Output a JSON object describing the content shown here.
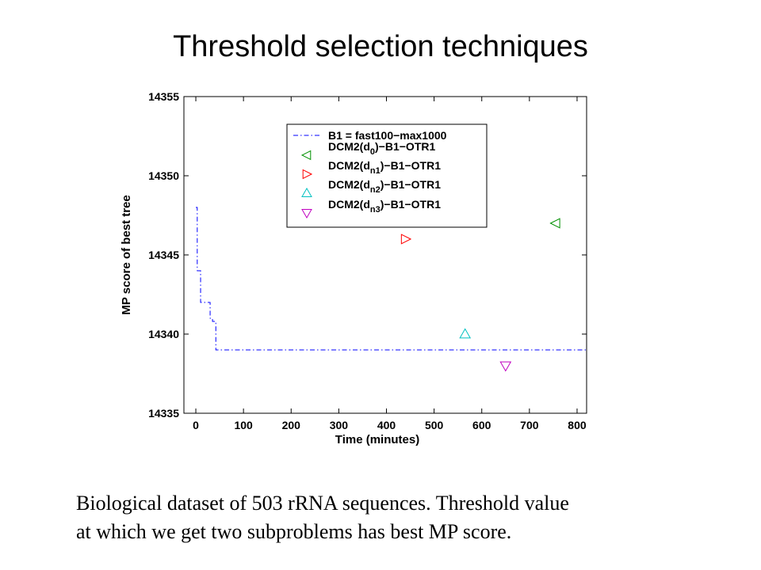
{
  "slide": {
    "title": "Threshold selection techniques",
    "caption_line1": "Biological dataset of 503 rRNA sequences. Threshold value",
    "caption_line2": "at which we get two subproblems has best MP score."
  },
  "chart_data": {
    "type": "line",
    "xlabel": "Time (minutes)",
    "ylabel": "MP score of best tree",
    "xlim": [
      -25,
      820
    ],
    "ylim": [
      14335,
      14355
    ],
    "xticks": [
      0,
      100,
      200,
      300,
      400,
      500,
      600,
      700,
      800
    ],
    "yticks": [
      14335,
      14340,
      14345,
      14350,
      14355
    ],
    "grid": false,
    "legend_position": "top-right",
    "series": [
      {
        "name": "B1 = fast100−max1000",
        "style": "dash-dot",
        "color": "#0000ff",
        "x": [
          0,
          3,
          3,
          10,
          10,
          30,
          30,
          35,
          35,
          42,
          42,
          820
        ],
        "y": [
          14348,
          14348,
          14344,
          14344,
          14342,
          14342,
          14341,
          14341,
          14340.8,
          14340.8,
          14339,
          14339
        ]
      }
    ],
    "markers": [
      {
        "name": "DCM2(d0)−B1−OTR1",
        "label_base": "DCM2(d",
        "label_sub": "0",
        "label_tail": ")−B1−OTR1",
        "shape": "triangle-left",
        "color": "#009000",
        "x": 755,
        "y": 14347
      },
      {
        "name": "DCM2(dn1)−B1−OTR1",
        "label_base": "DCM2(d",
        "label_sub": "n1",
        "label_tail": ")−B1−OTR1",
        "shape": "triangle-right",
        "color": "#ff0000",
        "x": 440,
        "y": 14346
      },
      {
        "name": "DCM2(dn2)−B1−OTR1",
        "label_base": "DCM2(d",
        "label_sub": "n2",
        "label_tail": ")−B1−OTR1",
        "shape": "triangle-up",
        "color": "#00c0c0",
        "x": 565,
        "y": 14340
      },
      {
        "name": "DCM2(dn3)−B1−OTR1",
        "label_base": "DCM2(d",
        "label_sub": "n3",
        "label_tail": ")−B1−OTR1",
        "shape": "triangle-down",
        "color": "#c000c0",
        "x": 650,
        "y": 14338
      }
    ]
  }
}
